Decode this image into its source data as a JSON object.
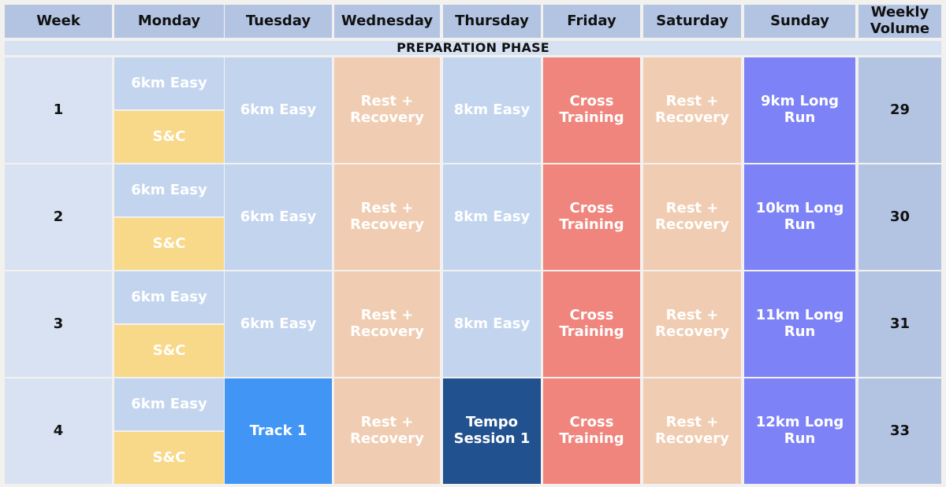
{
  "headers": [
    "Week",
    "Monday",
    "Tuesday",
    "Wednesday",
    "Thursday",
    "Friday",
    "Saturday",
    "Sunday",
    "Weekly Volume"
  ],
  "phase": "PREPARATION PHASE",
  "weeks": [
    {
      "week": "1",
      "mon_a": "6km Easy",
      "mon_b": "S&C",
      "tue": "6km Easy",
      "wed": "Rest + Recovery",
      "thu": "8km Easy",
      "fri": "Cross Training",
      "sat": "Rest + Recovery",
      "sun": "9km Long Run",
      "vol": "29"
    },
    {
      "week": "2",
      "mon_a": "6km Easy",
      "mon_b": "S&C",
      "tue": "6km Easy",
      "wed": "Rest + Recovery",
      "thu": "8km Easy",
      "fri": "Cross Training",
      "sat": "Rest + Recovery",
      "sun": "10km Long Run",
      "vol": "30"
    },
    {
      "week": "3",
      "mon_a": "6km Easy",
      "mon_b": "S&C",
      "tue": "6km Easy",
      "wed": "Rest + Recovery",
      "thu": "8km Easy",
      "fri": "Cross Training",
      "sat": "Rest + Recovery",
      "sun": "11km Long Run",
      "vol": "31"
    },
    {
      "week": "4",
      "mon_a": "6km Easy",
      "mon_b": "S&C",
      "tue": "Track 1",
      "wed": "Rest + Recovery",
      "thu": "Tempo Session 1",
      "fri": "Cross Training",
      "sat": "Rest + Recovery",
      "sun": "12km Long Run",
      "vol": "33"
    }
  ],
  "colors": {
    "header": "#b3c4e3",
    "phase": "#d6e2f2",
    "week": "#d9e2f2",
    "easy": "#c3d5ee",
    "strength": "#f8d98a",
    "rest": "#f0cdb2",
    "cross": "#ef857c",
    "long_run": "#7d83f7",
    "track": "#4195f5",
    "tempo": "#21518e",
    "volume": "#b3c4e3"
  }
}
